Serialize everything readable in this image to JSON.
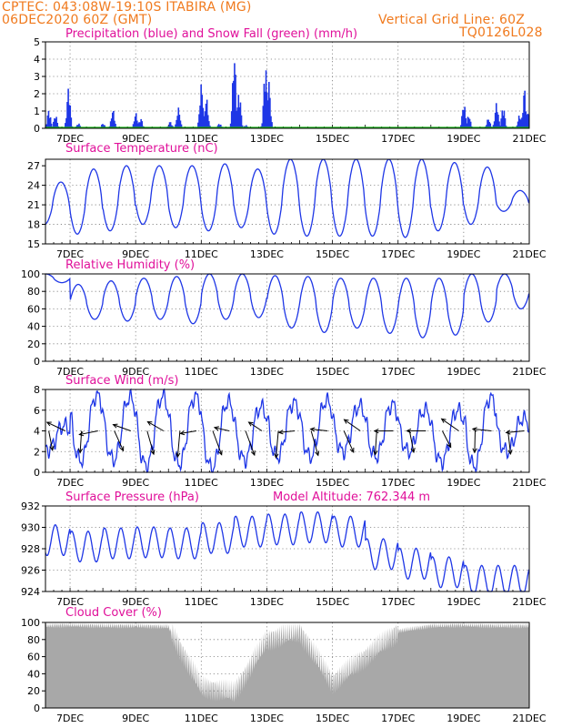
{
  "header": {
    "line1_left": "CPTEC:  043:08W-19:10S  ITABIRA (MG)",
    "line2_left": "06DEC2020 60Z (GMT)",
    "line1_right": "Vertical Grid Line: 60Z",
    "line2_right": "TQ0126L028"
  },
  "colors": {
    "header": "#f07a1e",
    "title": "#e0109a",
    "line": "#1e36e6",
    "snow": "#18b418",
    "cloud": "#a8a8a8"
  },
  "x_axis": {
    "tick_labels": [
      "7DEC",
      "9DEC",
      "11DEC",
      "13DEC",
      "15DEC",
      "17DEC",
      "19DEC",
      "21DEC"
    ],
    "tick_day": [
      7,
      9,
      11,
      13,
      15,
      17,
      19,
      21
    ],
    "range_days": [
      6.25,
      21.0
    ]
  },
  "chart_data": [
    {
      "type": "bar",
      "title": "Precipitation (blue) and Snow Fall (green) (mm/h)",
      "ylim": [
        0,
        5
      ],
      "yticks": [
        "0",
        "1",
        "2",
        "3",
        "4",
        "5"
      ],
      "ytick_values": [
        0,
        1,
        2,
        3,
        4,
        5
      ],
      "series": [
        {
          "name": "Precipitation",
          "bursts": [
            {
              "day": 6.35,
              "peak": 1.1
            },
            {
              "day": 6.55,
              "peak": 0.8
            },
            {
              "day": 6.95,
              "peak": 2.4
            },
            {
              "day": 7.25,
              "peak": 0.3
            },
            {
              "day": 8.0,
              "peak": 0.3
            },
            {
              "day": 8.3,
              "peak": 1.1
            },
            {
              "day": 9.0,
              "peak": 0.9
            },
            {
              "day": 9.15,
              "peak": 0.6
            },
            {
              "day": 10.05,
              "peak": 0.4
            },
            {
              "day": 10.3,
              "peak": 1.2
            },
            {
              "day": 11.0,
              "peak": 2.6
            },
            {
              "day": 11.15,
              "peak": 1.8
            },
            {
              "day": 11.55,
              "peak": 0.3
            },
            {
              "day": 12.0,
              "peak": 4.4
            },
            {
              "day": 12.15,
              "peak": 2.2
            },
            {
              "day": 12.35,
              "peak": 0.2
            },
            {
              "day": 12.95,
              "peak": 3.8
            },
            {
              "day": 13.05,
              "peak": 2.8
            },
            {
              "day": 19.0,
              "peak": 1.5
            },
            {
              "day": 19.15,
              "peak": 0.8
            },
            {
              "day": 19.75,
              "peak": 0.6
            },
            {
              "day": 20.0,
              "peak": 1.5
            },
            {
              "day": 20.2,
              "peak": 1.3
            },
            {
              "day": 20.7,
              "peak": 0.8
            },
            {
              "day": 20.85,
              "peak": 2.3
            },
            {
              "day": 21.0,
              "peak": 1.5
            }
          ]
        },
        {
          "name": "Snow Fall",
          "values": []
        }
      ]
    },
    {
      "type": "line",
      "title": "Surface Temperature (nC)",
      "ylim": [
        15,
        28
      ],
      "yticks": [
        "15",
        "18",
        "21",
        "24",
        "27"
      ],
      "ytick_values": [
        15,
        18,
        21,
        24,
        27
      ],
      "day_max": [
        24.5,
        26.5,
        27.0,
        27.0,
        27.0,
        27.3,
        26.5,
        28,
        28,
        28,
        28,
        28,
        27.5,
        26.8,
        23.2
      ],
      "day_min": [
        18.0,
        16.5,
        17.0,
        18.0,
        17.5,
        17.0,
        17.5,
        16.5,
        16.2,
        16.2,
        16.2,
        16.0,
        17.0,
        18.0,
        20.0
      ]
    },
    {
      "type": "line",
      "title": "Relative Humidity (%)",
      "ylim": [
        0,
        100
      ],
      "yticks": [
        "0",
        "20",
        "40",
        "60",
        "80",
        "100"
      ],
      "ytick_values": [
        0,
        20,
        40,
        60,
        80,
        100
      ],
      "day_min": [
        90,
        48,
        46,
        48,
        43,
        48,
        50,
        38,
        33,
        38,
        32,
        27,
        30,
        45,
        60
      ],
      "day_max": [
        100,
        88,
        92,
        95,
        97,
        100,
        100,
        98,
        97,
        95,
        95,
        95,
        95,
        100,
        100
      ]
    },
    {
      "type": "line",
      "title": "Surface Wind (m/s)",
      "ylim": [
        0,
        8
      ],
      "yticks": [
        "0",
        "2",
        "4",
        "6",
        "8"
      ],
      "ytick_values": [
        0,
        2,
        4,
        6,
        8
      ],
      "day_max": [
        4.5,
        7.4,
        7.2,
        7.3,
        7.3,
        6.8,
        6.3,
        6.7,
        6.9,
        6.4,
        6.5,
        6.0,
        6.0,
        7.2,
        5.2
      ],
      "day_min": [
        2.2,
        1.1,
        1.2,
        0.6,
        0.8,
        0.4,
        1.2,
        1.5,
        1.5,
        2.0,
        1.5,
        2.0,
        1.0,
        0.6,
        2.0
      ],
      "arrows_every_hours": 12
    },
    {
      "type": "line",
      "title": "Surface Pressure (hPa)",
      "annotation": "Model Altitude: 762.344 m",
      "ylim": [
        924,
        932
      ],
      "yticks": [
        "924",
        "926",
        "928",
        "930",
        "932"
      ],
      "ytick_values": [
        924,
        926,
        928,
        930,
        932
      ],
      "day_mean": [
        928.8,
        928.2,
        928.5,
        928.6,
        928.5,
        929.0,
        929.6,
        929.8,
        930.0,
        929.6,
        927.5,
        926.6,
        925.8,
        925.0,
        925.0
      ],
      "amplitude": 1.6
    },
    {
      "type": "area",
      "title": "Cloud Cover (%)",
      "ylim": [
        0,
        100
      ],
      "yticks": [
        "0",
        "20",
        "40",
        "60",
        "80",
        "100"
      ],
      "ytick_values": [
        0,
        20,
        40,
        60,
        80,
        100
      ],
      "level_by_day": [
        96,
        97,
        96,
        96,
        95,
        25,
        18,
        80,
        90,
        30,
        60,
        90,
        96,
        97,
        96
      ]
    }
  ]
}
